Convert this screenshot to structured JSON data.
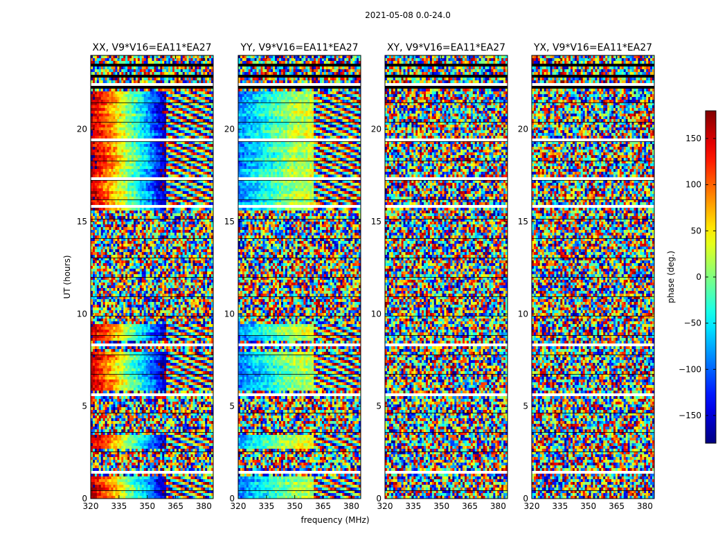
{
  "figure": {
    "suptitle": "2021-05-08 0.0-24.0",
    "xlabel": "frequency (MHz)",
    "ylabel": "UT (hours)"
  },
  "colorbar": {
    "label": "phase (deg.)",
    "range": [
      -180,
      180
    ],
    "ticks": [
      150,
      100,
      50,
      0,
      -50,
      -100,
      -150
    ],
    "tick_labels": [
      "150",
      "100",
      "50",
      "0",
      "−50",
      "−100",
      "−150"
    ],
    "colormap": "jet"
  },
  "chart_data": {
    "type": "heatmap",
    "x": {
      "quantity": "frequency",
      "unit": "MHz",
      "range": [
        320,
        385
      ],
      "ticks": [
        320,
        335,
        350,
        365,
        380
      ],
      "tick_labels": [
        "320",
        "335",
        "350",
        "365",
        "380"
      ]
    },
    "y": {
      "quantity": "UT",
      "unit": "hours",
      "range": [
        0,
        24
      ],
      "ticks": [
        0,
        5,
        10,
        15,
        20
      ],
      "tick_labels": [
        "0",
        "5",
        "10",
        "15",
        "20"
      ]
    },
    "z": {
      "quantity": "phase",
      "unit": "deg",
      "range": [
        -180,
        180
      ]
    },
    "panels": [
      {
        "title": "XX, V9*V16=EA11*EA27",
        "pol": "XX",
        "coherent_phase_edges": [
          160,
          85,
          0,
          -75,
          -170
        ],
        "coherent_bands_hours": [
          [
            0,
            1.2
          ],
          [
            2.7,
            3.5
          ],
          [
            5.9,
            7.9
          ],
          [
            8.5,
            9.5
          ],
          [
            15.6,
            22.0
          ]
        ]
      },
      {
        "title": "YY, V9*V16=EA11*EA27",
        "pol": "YY",
        "coherent_phase_edges": [
          -90,
          -55,
          -20,
          15,
          25
        ],
        "coherent_bands_hours": [
          [
            0,
            1.2
          ],
          [
            2.7,
            3.5
          ],
          [
            5.9,
            7.9
          ],
          [
            8.5,
            9.5
          ],
          [
            15.6,
            22.0
          ]
        ]
      },
      {
        "title": "XY, V9*V16=EA11*EA27",
        "pol": "XY",
        "coherent_phase_edges": [],
        "coherent_bands_hours": []
      },
      {
        "title": "YX, V9*V16=EA11*EA27",
        "pol": "YX",
        "coherent_phase_edges": [],
        "coherent_bands_hours": []
      }
    ],
    "flagged_hours": [
      [
        1.35,
        1.55
      ],
      [
        1.75,
        1.82
      ],
      [
        5.6,
        5.68
      ],
      [
        8.3,
        8.42
      ],
      [
        10.75,
        10.8
      ],
      [
        15.1,
        15.18
      ],
      [
        15.75,
        15.85
      ],
      [
        17.3,
        17.36
      ],
      [
        18.55,
        18.65
      ],
      [
        19.4,
        19.46
      ],
      [
        22.15,
        22.45
      ],
      [
        22.8,
        22.95
      ],
      [
        23.4,
        23.5
      ]
    ]
  }
}
